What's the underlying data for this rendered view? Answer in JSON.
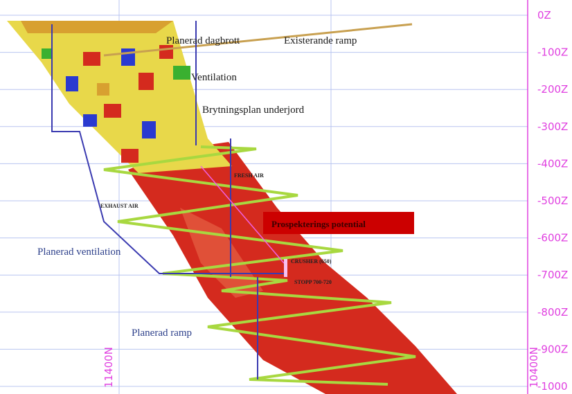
{
  "labels": {
    "open_pit": "Planerad dagbrott",
    "existing_ramp": "Existerande ramp",
    "ventilation": "Ventilation",
    "stoping": "Brytningsplan underjord",
    "planned_ventilation": "Planerad ventilation",
    "planned_ramp": "Planerad ramp",
    "fresh_air": "FRESH AIR",
    "exhaust_air": "EXHAUST AIR",
    "crusher": "CRUSHER (650)",
    "stope": "STOPP 700-720",
    "potential": "Prospekterings potential"
  },
  "depth_labels": [
    "0Z",
    "-100Z",
    "-200Z",
    "-300Z",
    "-400Z",
    "-500Z",
    "-600Z",
    "-700Z",
    "-800Z",
    "-900Z",
    "-1000"
  ],
  "northing_labels": [
    "11400N",
    "10400N"
  ]
}
